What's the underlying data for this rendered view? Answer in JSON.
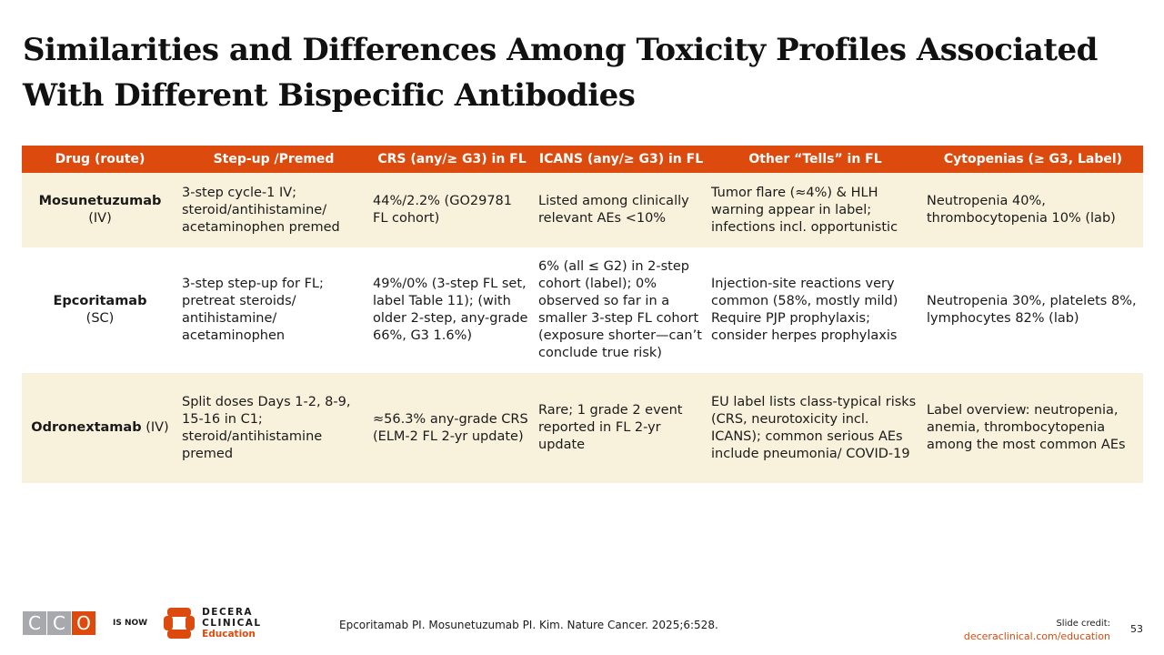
{
  "title": "Similarities and Differences Among Toxicity Profiles Associated With Different Bispecific Antibodies",
  "table": {
    "headers": [
      "Drug (route)",
      "Step-up /Premed",
      "CRS (any/≥ G3) in FL",
      "ICANS (any/≥ G3) in FL",
      "Other “Tells” in FL",
      "Cytopenias (≥ G3, Label)"
    ],
    "rows": [
      {
        "drug": "Mosunetuzumab",
        "route": "(IV)",
        "stepup": "3-step cycle-1 IV; steroid/antihistamine/ acetaminophen premed",
        "crs": "44%/2.2% (GO29781 FL cohort)",
        "icans": "Listed among clinically relevant AEs <10%",
        "other": "Tumor flare (≈4%) & HLH warning appear in label; infections incl. opportunistic",
        "cyto": "Neutropenia 40%, thrombocytopenia 10% (lab)"
      },
      {
        "drug": "Epcoritamab",
        "route": "(SC)",
        "stepup": "3-step step-up for FL; pretreat steroids/ antihistamine/ acetaminophen",
        "crs": "49%/0% (3-step FL set, label Table 11); (with older 2-step, any-grade 66%, G3 1.6%)",
        "icans": "6% (all ≤ G2) in 2-step cohort (label); 0% observed so far in a smaller 3-step FL cohort (exposure shorter—can’t conclude true risk)",
        "other": "Injection-site reactions very common (58%, mostly mild) Require PJP prophylaxis; consider herpes prophylaxis",
        "cyto": "Neutropenia 30%, platelets 8%, lymphocytes 82% (lab)"
      },
      {
        "drug": "Odronextamab",
        "route": "(IV)",
        "stepup": "Split doses Days 1-2, 8-9, 15-16 in C1; steroid/antihistamine premed",
        "crs": "≈56.3% any-grade CRS (ELM-2 FL 2-yr update)",
        "icans": "Rare; 1 grade 2 event reported in FL 2-yr update",
        "other": "EU label lists class-typical risks (CRS, neurotoxicity incl. ICANS); common serious AEs include pneumonia/ COVID-19",
        "cyto": "Label overview: neutropenia, anemia, thrombocytopenia among the most common AEs"
      }
    ]
  },
  "footer": {
    "cco_letters": [
      "C",
      "C",
      "O"
    ],
    "is_now": "IS NOW",
    "decera_line1": "DECERA",
    "decera_line2": "CLINICAL",
    "decera_line3": "Education",
    "references": "Epcoritamab PI. Mosunetuzumab PI. Kim. Nature Cancer. 2025;6:528.",
    "credit_label": "Slide credit:",
    "credit_url": "deceraclinical.com/education",
    "page_number": "53"
  },
  "colors": {
    "accent": "#DC4A0E",
    "row_beige": "#F8F1DC"
  }
}
